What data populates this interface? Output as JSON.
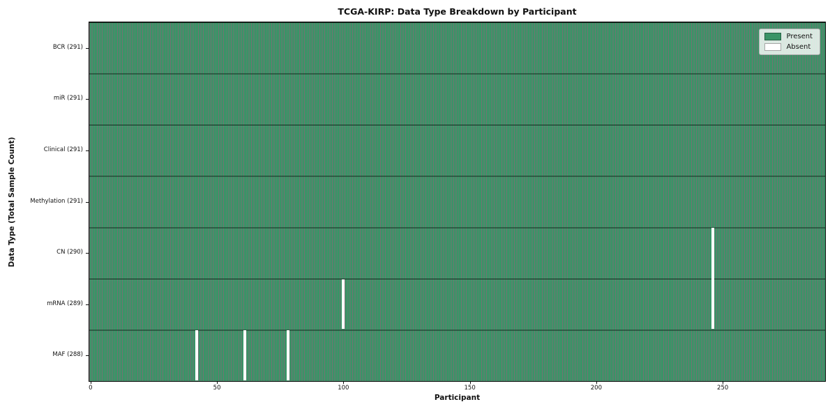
{
  "chart_data": {
    "type": "heatmap",
    "title": "TCGA-KIRP: Data Type Breakdown by Participant",
    "xlabel": "Participant",
    "ylabel": "Data Type (Total Sample Count)",
    "n_participants": 291,
    "x_ticks": [
      0,
      50,
      100,
      150,
      200,
      250
    ],
    "rows": [
      {
        "label": "BCR (291)",
        "data_type": "BCR",
        "total": 291,
        "absent_participants": []
      },
      {
        "label": "miR (291)",
        "data_type": "miR",
        "total": 291,
        "absent_participants": []
      },
      {
        "label": "Clinical (291)",
        "data_type": "Clinical",
        "total": 291,
        "absent_participants": []
      },
      {
        "label": "Methylation (291)",
        "data_type": "Methylation",
        "total": 291,
        "absent_participants": []
      },
      {
        "label": "CN (290)",
        "data_type": "CN",
        "total": 290,
        "absent_participants": [
          246
        ]
      },
      {
        "label": "mRNA (289)",
        "data_type": "mRNA",
        "total": 289,
        "absent_participants": [
          100,
          246
        ]
      },
      {
        "label": "MAF (288)",
        "data_type": "MAF",
        "total": 288,
        "absent_participants": [
          42,
          61,
          78
        ]
      }
    ],
    "legend": [
      {
        "label": "Present",
        "color": "#3a9467"
      },
      {
        "label": "Absent",
        "color": "#ffffff"
      }
    ],
    "layout": {
      "grid": "row-separators-and-bar-edges",
      "legend_position": "upper-right-inside"
    },
    "colors": {
      "present": "#3a9467",
      "absent": "#ffffff",
      "bar_edge": "rgba(0,0,0,0.55)",
      "row_separator": "rgba(5,20,12,0.8)",
      "spine": "#0a0a0a",
      "background": "#ffffff",
      "text": "#111111"
    }
  }
}
